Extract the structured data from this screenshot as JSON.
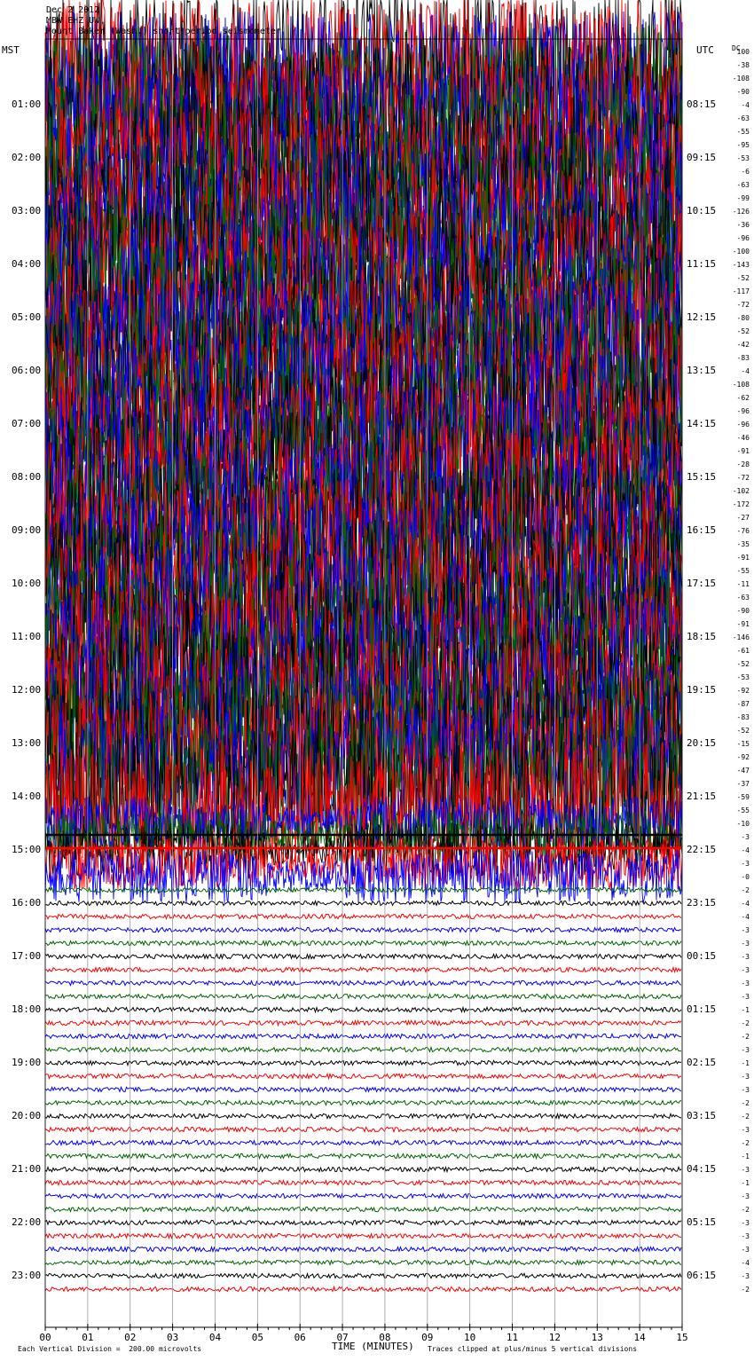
{
  "header": {
    "line1": "Dec 2 2012",
    "line2": "MBW EHZ UW",
    "line3": "Mount Baker (Wash.) short period seismometer"
  },
  "left_timezone": "MST",
  "right_timezone": "UTC",
  "dc_header": "DC",
  "footer": {
    "division": "Each Vertical Division =  200.00 microvolts",
    "xlabel": "TIME (MINUTES)",
    "clip": "Traces clipped at plus/minus 5 vertical divisions"
  },
  "colors": {
    "black": "#000000",
    "red": "#ff0000",
    "blue": "#0000ff",
    "green": "#006400",
    "grid": "#999999"
  },
  "chart_data": {
    "type": "line",
    "x_unit": "minutes",
    "xlim": [
      0,
      15
    ],
    "x_ticks": [
      "00",
      "01",
      "02",
      "03",
      "04",
      "05",
      "06",
      "07",
      "08",
      "09",
      "10",
      "11",
      "12",
      "13",
      "14",
      "15"
    ],
    "traces_per_hour": 4,
    "minutes_per_trace": 15,
    "trace_color_cycle": [
      "black",
      "red",
      "blue",
      "green"
    ],
    "left_hour_labels": [
      "01:00",
      "02:00",
      "03:00",
      "04:00",
      "05:00",
      "06:00",
      "07:00",
      "08:00",
      "09:00",
      "10:00",
      "11:00",
      "12:00",
      "13:00",
      "14:00",
      "15:00",
      "16:00",
      "17:00",
      "18:00",
      "19:00",
      "20:00",
      "21:00",
      "22:00",
      "23:00"
    ],
    "right_hour_labels": [
      "08:15",
      "09:15",
      "10:15",
      "11:15",
      "12:15",
      "13:15",
      "14:15",
      "15:15",
      "16:15",
      "17:15",
      "18:15",
      "19:15",
      "20:15",
      "21:15",
      "22:15",
      "23:15",
      "00:15",
      "01:15",
      "02:15",
      "03:15",
      "04:15",
      "05:15",
      "06:15"
    ],
    "trace_dc_offsets": [
      "100",
      "-38",
      "-108",
      "-90",
      "-4",
      "-63",
      "-55",
      "-95",
      "-53",
      "-6",
      "-63",
      "-99",
      "-126",
      "-36",
      "-96",
      "-100",
      "-143",
      "-52",
      "-117",
      "-72",
      "-80",
      "-52",
      "-42",
      "-83",
      "-4",
      "-108",
      "-62",
      "-96",
      "-96",
      "-46",
      "-91",
      "-28",
      "-72",
      "-102",
      "-172",
      "-27",
      "-76",
      "-35",
      "-91",
      "-55",
      "-11",
      "-63",
      "-90",
      "-91",
      "-146",
      "-61",
      "-52",
      "-53",
      "-92",
      "-87",
      "-83",
      "-52",
      "-15",
      "-92",
      "-47",
      "-37",
      "-59",
      "-55",
      "-10",
      "-3",
      "-4",
      "-3",
      "-0",
      "-2",
      "-4",
      "-4",
      "-3",
      "-3",
      "-3",
      "-3",
      "-3",
      "-3",
      "-1",
      "-2",
      "-2",
      "-3",
      "-1",
      "-3",
      "-3",
      "-2",
      "-2",
      "-3",
      "-2",
      "-1",
      "-3",
      "-1",
      "-3",
      "-2",
      "-3",
      "-3",
      "-3",
      "-4",
      "-3",
      "-2"
    ],
    "trace_state": [
      "saturated",
      "saturated",
      "saturated",
      "saturated",
      "saturated",
      "saturated",
      "saturated",
      "saturated",
      "saturated",
      "saturated",
      "saturated",
      "saturated",
      "saturated",
      "saturated",
      "saturated",
      "saturated",
      "saturated",
      "saturated",
      "saturated",
      "saturated",
      "saturated",
      "saturated",
      "saturated",
      "saturated",
      "saturated",
      "saturated",
      "saturated",
      "saturated",
      "saturated",
      "saturated",
      "saturated",
      "saturated",
      "saturated",
      "saturated",
      "saturated",
      "saturated",
      "saturated",
      "saturated",
      "saturated",
      "saturated",
      "saturated",
      "saturated",
      "saturated",
      "saturated",
      "saturated",
      "saturated",
      "saturated",
      "saturated",
      "saturated",
      "saturated",
      "saturated",
      "saturated",
      "saturated",
      "saturated",
      "saturated",
      "saturated",
      "saturated",
      "saturated",
      "transition",
      "transition",
      "transition",
      "transition",
      "transition",
      "quiet",
      "quiet",
      "quiet",
      "quiet",
      "quiet",
      "quiet",
      "quiet",
      "quiet",
      "quiet",
      "quiet",
      "quiet",
      "quiet",
      "quiet",
      "quiet",
      "quiet",
      "quiet",
      "quiet",
      "quiet",
      "quiet",
      "quiet",
      "quiet",
      "quiet",
      "quiet",
      "quiet",
      "quiet",
      "quiet",
      "quiet",
      "quiet",
      "quiet",
      "quiet",
      "quiet"
    ]
  }
}
